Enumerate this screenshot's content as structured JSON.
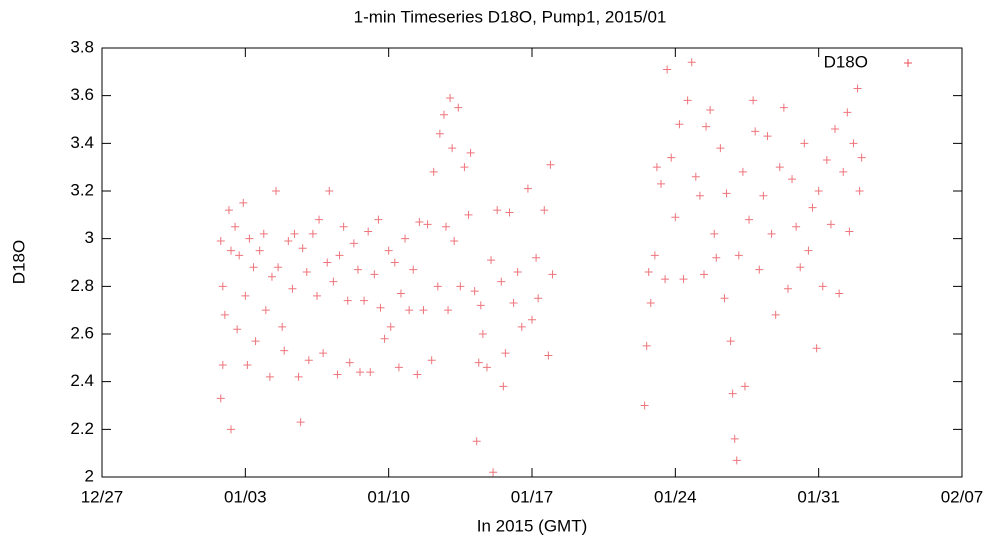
{
  "chart_data": {
    "type": "scatter",
    "title": "1-min Timeseries D18O, Pump1, 2015/01",
    "xlabel": "In 2015 (GMT)",
    "ylabel": "D18O",
    "legend": "top-right",
    "xlim": [
      -4,
      38
    ],
    "xticks": [
      {
        "value": -4,
        "label": "12/27"
      },
      {
        "value": 3,
        "label": "01/03"
      },
      {
        "value": 10,
        "label": "01/10"
      },
      {
        "value": 17,
        "label": "01/17"
      },
      {
        "value": 24,
        "label": "01/24"
      },
      {
        "value": 31,
        "label": "01/31"
      },
      {
        "value": 38,
        "label": "02/07"
      }
    ],
    "ylim": [
      2,
      3.8
    ],
    "yticks": [
      2,
      2.2,
      2.4,
      2.6,
      2.8,
      3,
      3.2,
      3.4,
      3.6,
      3.8
    ],
    "x": [
      1.8,
      1.8,
      1.9,
      1.9,
      2.0,
      2.2,
      2.3,
      2.3,
      2.5,
      2.6,
      2.7,
      2.9,
      3.0,
      3.1,
      3.2,
      3.4,
      3.5,
      3.7,
      3.9,
      4.0,
      4.2,
      4.3,
      4.5,
      4.6,
      4.8,
      4.9,
      5.1,
      5.3,
      5.4,
      5.6,
      5.7,
      5.8,
      6.0,
      6.1,
      6.3,
      6.5,
      6.6,
      6.8,
      7.0,
      7.1,
      7.3,
      7.5,
      7.6,
      7.8,
      8.0,
      8.1,
      8.3,
      8.5,
      8.6,
      8.8,
      9.0,
      9.1,
      9.3,
      9.5,
      9.6,
      9.8,
      10.0,
      10.1,
      10.3,
      10.5,
      10.6,
      10.8,
      11.0,
      11.2,
      11.4,
      11.5,
      11.7,
      11.9,
      12.1,
      12.2,
      12.4,
      12.5,
      12.7,
      12.8,
      12.9,
      13.0,
      13.1,
      13.2,
      13.4,
      13.5,
      13.7,
      13.9,
      14.0,
      14.2,
      14.3,
      14.4,
      14.5,
      14.6,
      14.8,
      15.0,
      15.1,
      15.3,
      15.5,
      15.6,
      15.7,
      15.9,
      16.1,
      16.3,
      16.5,
      16.8,
      17.0,
      17.2,
      17.3,
      17.6,
      17.8,
      17.9,
      18.0,
      22.5,
      22.6,
      22.7,
      22.8,
      23.0,
      23.1,
      23.3,
      23.5,
      23.6,
      23.8,
      24.0,
      24.2,
      24.4,
      24.6,
      24.8,
      25.0,
      25.2,
      25.4,
      25.5,
      25.7,
      25.9,
      26.0,
      26.2,
      26.4,
      26.5,
      26.7,
      26.8,
      26.9,
      27.0,
      27.1,
      27.3,
      27.4,
      27.6,
      27.8,
      27.9,
      28.1,
      28.3,
      28.5,
      28.7,
      28.9,
      29.1,
      29.3,
      29.5,
      29.7,
      29.9,
      30.1,
      30.3,
      30.5,
      30.7,
      30.9,
      31.0,
      31.2,
      31.4,
      31.6,
      31.8,
      32.0,
      32.2,
      32.4,
      32.5,
      32.7,
      32.9,
      33.0,
      33.1
    ],
    "series": [
      {
        "name": "D18O",
        "color": "#e8525a",
        "values": [
          2.99,
          2.33,
          2.47,
          2.8,
          2.68,
          3.12,
          2.2,
          2.95,
          3.05,
          2.62,
          2.93,
          3.15,
          2.76,
          2.47,
          3.0,
          2.88,
          2.57,
          2.95,
          3.02,
          2.7,
          2.42,
          2.84,
          3.2,
          2.88,
          2.63,
          2.53,
          2.99,
          2.79,
          3.02,
          2.42,
          2.23,
          2.96,
          2.86,
          2.49,
          3.02,
          2.76,
          3.08,
          2.52,
          2.9,
          3.2,
          2.82,
          2.43,
          2.93,
          3.05,
          2.74,
          2.48,
          2.98,
          2.87,
          2.44,
          2.74,
          3.03,
          2.44,
          2.85,
          3.08,
          2.71,
          2.58,
          2.95,
          2.63,
          2.9,
          2.46,
          2.77,
          3.0,
          2.7,
          2.87,
          2.43,
          3.07,
          2.7,
          3.06,
          2.49,
          3.28,
          2.8,
          3.44,
          3.52,
          3.05,
          2.7,
          3.59,
          3.38,
          2.99,
          3.55,
          2.8,
          3.3,
          3.1,
          3.36,
          2.78,
          2.15,
          2.48,
          2.72,
          2.6,
          2.46,
          2.91,
          2.02,
          3.12,
          2.82,
          2.38,
          2.52,
          3.11,
          2.73,
          2.86,
          2.63,
          3.21,
          2.66,
          2.92,
          2.75,
          3.12,
          2.51,
          3.31,
          2.85,
          2.3,
          2.55,
          2.86,
          2.73,
          2.93,
          3.3,
          3.23,
          2.83,
          3.71,
          3.34,
          3.09,
          3.48,
          2.83,
          3.58,
          3.74,
          3.26,
          3.18,
          2.85,
          3.47,
          3.54,
          3.02,
          2.92,
          3.38,
          2.75,
          3.19,
          2.57,
          2.35,
          2.16,
          2.07,
          2.93,
          3.28,
          2.38,
          3.08,
          3.58,
          3.45,
          2.87,
          3.18,
          3.43,
          3.02,
          2.68,
          3.3,
          3.55,
          2.79,
          3.25,
          3.05,
          2.88,
          3.4,
          2.95,
          3.13,
          2.54,
          3.2,
          2.8,
          3.33,
          3.06,
          3.46,
          2.77,
          3.28,
          3.53,
          3.03,
          3.4,
          3.63,
          3.2,
          3.34
        ]
      }
    ]
  }
}
